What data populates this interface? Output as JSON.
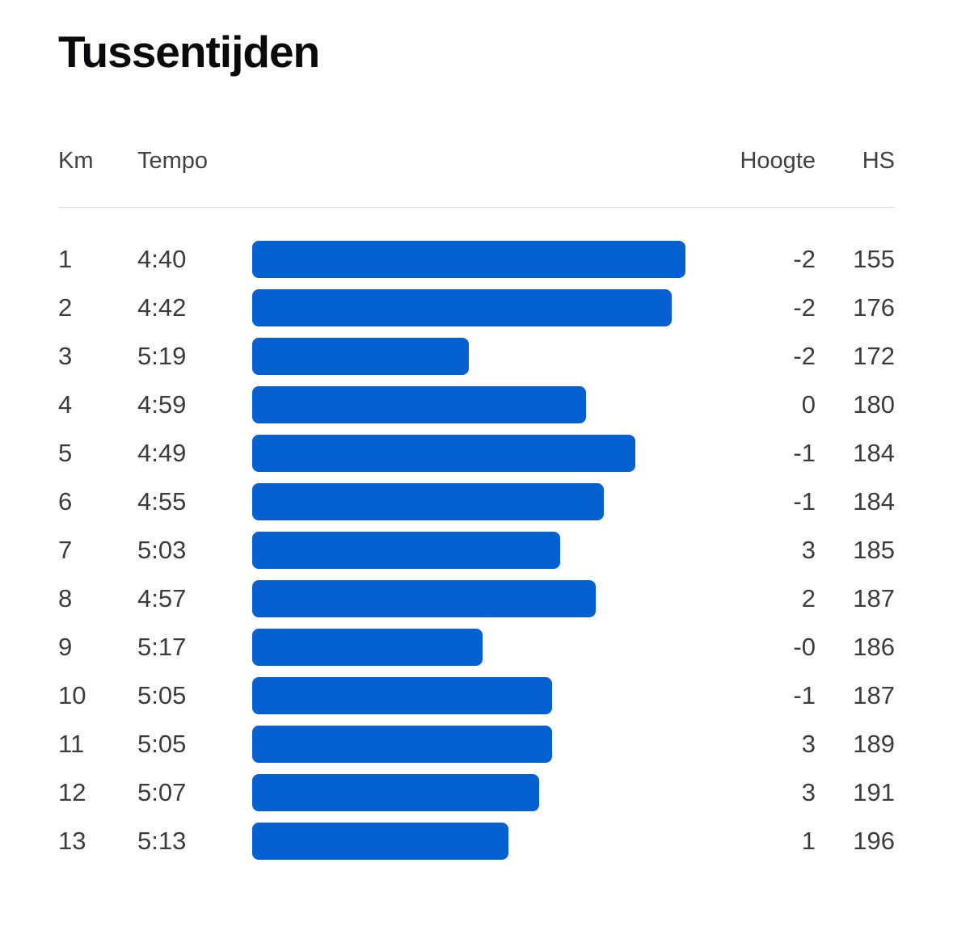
{
  "page": {
    "title": "Tussentijden",
    "background": "#ffffff",
    "text_color": "#3c3c3f",
    "divider_color": "#dcdcdc"
  },
  "table": {
    "headers": {
      "km": "Km",
      "tempo": "Tempo",
      "hoogte": "Hoogte",
      "hs": "HS"
    }
  },
  "chart_data": {
    "type": "bar",
    "orientation": "horizontal",
    "title": "Tussentijden",
    "bar_color": "#0561d2",
    "legend": "none",
    "grid": false,
    "columns": [
      "Km",
      "Tempo",
      "Hoogte",
      "HS"
    ],
    "note": "bar_pct is bar length as percent of the longest bar (km 1, pace 4:40)",
    "splits": [
      {
        "km": "1",
        "tempo": "4:40",
        "hoogte": "-2",
        "hs": "155",
        "bar_pct": 100
      },
      {
        "km": "2",
        "tempo": "4:42",
        "hoogte": "-2",
        "hs": "176",
        "bar_pct": 96.8
      },
      {
        "km": "3",
        "tempo": "5:19",
        "hoogte": "-2",
        "hs": "172",
        "bar_pct": 50.0
      },
      {
        "km": "4",
        "tempo": "4:59",
        "hoogte": "0",
        "hs": "180",
        "bar_pct": 77.1
      },
      {
        "km": "5",
        "tempo": "4:49",
        "hoogte": "-1",
        "hs": "184",
        "bar_pct": 88.4
      },
      {
        "km": "6",
        "tempo": "4:55",
        "hoogte": "-1",
        "hs": "184",
        "bar_pct": 81.2
      },
      {
        "km": "7",
        "tempo": "5:03",
        "hoogte": "3",
        "hs": "185",
        "bar_pct": 71.1
      },
      {
        "km": "8",
        "tempo": "4:57",
        "hoogte": "2",
        "hs": "187",
        "bar_pct": 79.3
      },
      {
        "km": "9",
        "tempo": "5:17",
        "hoogte": "-0",
        "hs": "186",
        "bar_pct": 53.2
      },
      {
        "km": "10",
        "tempo": "5:05",
        "hoogte": "-1",
        "hs": "187",
        "bar_pct": 69.2
      },
      {
        "km": "11",
        "tempo": "5:05",
        "hoogte": "3",
        "hs": "189",
        "bar_pct": 69.2
      },
      {
        "km": "12",
        "tempo": "5:07",
        "hoogte": "3",
        "hs": "191",
        "bar_pct": 66.2
      },
      {
        "km": "13",
        "tempo": "5:13",
        "hoogte": "1",
        "hs": "196",
        "bar_pct": 59.1
      }
    ]
  }
}
